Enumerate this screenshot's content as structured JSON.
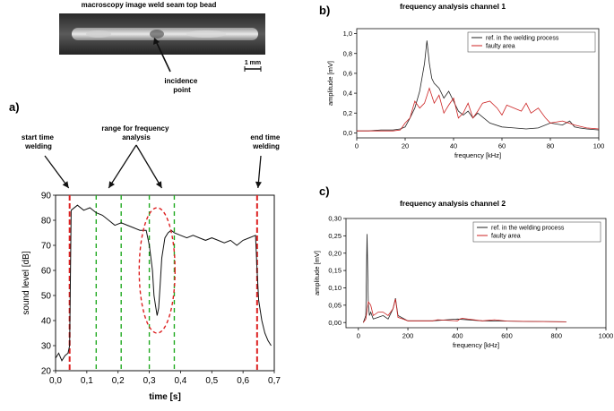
{
  "chart_data": [
    {
      "panel": "a)",
      "type": "line",
      "xlabel": "time [s]",
      "ylabel": "sound level [dB]",
      "xlim": [
        0,
        0.7
      ],
      "ylim": [
        20,
        90
      ],
      "x_ticks": [
        "0,0",
        "0,1",
        "0,2",
        "0,3",
        "0,4",
        "0,5",
        "0,6",
        "0,7"
      ],
      "y_ticks": [
        "20",
        "30",
        "40",
        "50",
        "60",
        "70",
        "80",
        "90"
      ],
      "series": [
        {
          "color": "#111111",
          "x": [
            0.0,
            0.01,
            0.02,
            0.03,
            0.04,
            0.045,
            0.05,
            0.07,
            0.09,
            0.11,
            0.13,
            0.15,
            0.17,
            0.19,
            0.21,
            0.23,
            0.25,
            0.27,
            0.29,
            0.3,
            0.31,
            0.315,
            0.32,
            0.325,
            0.33,
            0.335,
            0.34,
            0.35,
            0.36,
            0.37,
            0.38,
            0.4,
            0.42,
            0.44,
            0.46,
            0.48,
            0.5,
            0.52,
            0.54,
            0.56,
            0.58,
            0.6,
            0.62,
            0.64,
            0.645,
            0.65,
            0.66,
            0.67,
            0.68,
            0.69
          ],
          "y": [
            25,
            27,
            24,
            26,
            27,
            30,
            84,
            86,
            84,
            85,
            83,
            82,
            80,
            78,
            79,
            78,
            77,
            76,
            76,
            70,
            60,
            50,
            46,
            42,
            45,
            55,
            65,
            73,
            75,
            76,
            75,
            74,
            73,
            74,
            73,
            72,
            73,
            72,
            71,
            72,
            70,
            72,
            73,
            74,
            60,
            48,
            40,
            35,
            32,
            30
          ]
        }
      ],
      "markers_red_x": [
        0.045,
        0.645
      ],
      "markers_green_x": [
        0.13,
        0.21,
        0.3,
        0.38
      ],
      "annotations": {
        "start": "start time welding",
        "end": "end time welding",
        "range": "range for frequency analysis"
      }
    },
    {
      "panel": "b)",
      "type": "line",
      "title": "frequency analysis channel 1",
      "xlabel": "frequency [kHz]",
      "ylabel": "amplitude [mV]",
      "xlim": [
        0,
        100
      ],
      "ylim": [
        -0.05,
        1.05
      ],
      "x_ticks": [
        "0",
        "20",
        "40",
        "60",
        "80",
        "100"
      ],
      "y_ticks": [
        "0,0",
        "0,2",
        "0,4",
        "0,6",
        "0,8",
        "1,0"
      ],
      "legend": [
        "ref. in the welding process",
        "faulty area"
      ],
      "legend_position": "top-right",
      "series": [
        {
          "name": "ref. in the welding process",
          "color": "#222222",
          "x": [
            0,
            5,
            10,
            15,
            18,
            20,
            22,
            24,
            26,
            28,
            29,
            30,
            31,
            32,
            34,
            36,
            38,
            40,
            42,
            44,
            46,
            48,
            50,
            55,
            60,
            65,
            70,
            75,
            80,
            85,
            88,
            90,
            92,
            95,
            100
          ],
          "y": [
            0.02,
            0.02,
            0.03,
            0.03,
            0.04,
            0.06,
            0.15,
            0.25,
            0.42,
            0.7,
            0.93,
            0.7,
            0.55,
            0.5,
            0.45,
            0.35,
            0.42,
            0.32,
            0.22,
            0.18,
            0.22,
            0.15,
            0.2,
            0.1,
            0.06,
            0.05,
            0.04,
            0.05,
            0.1,
            0.08,
            0.12,
            0.06,
            0.05,
            0.04,
            0.03
          ]
        },
        {
          "name": "faulty area",
          "color": "#cc2222",
          "x": [
            0,
            5,
            10,
            15,
            18,
            20,
            22,
            24,
            26,
            28,
            30,
            32,
            34,
            36,
            38,
            40,
            42,
            44,
            46,
            48,
            50,
            52,
            55,
            58,
            60,
            62,
            65,
            68,
            70,
            72,
            75,
            78,
            80,
            85,
            90,
            95,
            100
          ],
          "y": [
            0.02,
            0.02,
            0.02,
            0.02,
            0.03,
            0.1,
            0.15,
            0.32,
            0.25,
            0.3,
            0.45,
            0.3,
            0.38,
            0.2,
            0.28,
            0.35,
            0.15,
            0.2,
            0.3,
            0.15,
            0.22,
            0.3,
            0.32,
            0.25,
            0.18,
            0.28,
            0.25,
            0.22,
            0.3,
            0.2,
            0.25,
            0.15,
            0.1,
            0.12,
            0.08,
            0.05,
            0.04
          ]
        }
      ]
    },
    {
      "panel": "c)",
      "type": "line",
      "title": "frequency analysis channel 2",
      "xlabel": "frequency [kHz]",
      "ylabel": "amplitude [mV]",
      "xlim": [
        -50,
        1000
      ],
      "ylim": [
        -0.015,
        0.3
      ],
      "x_ticks": [
        "0",
        "200",
        "400",
        "600",
        "800",
        "1000"
      ],
      "y_ticks": [
        "0,00",
        "0,05",
        "0,10",
        "0,15",
        "0,20",
        "0,25",
        "0,30"
      ],
      "legend": [
        "ref. in the welding process",
        "faulty area"
      ],
      "legend_position": "top-right",
      "series": [
        {
          "name": "ref. in the welding process",
          "color": "#222222",
          "x": [
            20,
            30,
            35,
            40,
            45,
            50,
            60,
            80,
            100,
            120,
            140,
            150,
            160,
            200,
            300,
            400,
            500,
            600,
            700,
            840
          ],
          "y": [
            0.0,
            0.02,
            0.255,
            0.05,
            0.02,
            0.03,
            0.01,
            0.015,
            0.02,
            0.01,
            0.04,
            0.07,
            0.02,
            0.005,
            0.005,
            0.01,
            0.005,
            0.004,
            0.003,
            0.002
          ]
        },
        {
          "name": "faulty area",
          "color": "#cc2222",
          "x": [
            20,
            30,
            40,
            50,
            60,
            80,
            100,
            120,
            140,
            150,
            160,
            180,
            200,
            300,
            320,
            400,
            410,
            420,
            500,
            550,
            600,
            700,
            840
          ],
          "y": [
            0.0,
            0.01,
            0.06,
            0.05,
            0.02,
            0.03,
            0.03,
            0.02,
            0.04,
            0.068,
            0.015,
            0.01,
            0.005,
            0.005,
            0.008,
            0.005,
            0.01,
            0.012,
            0.005,
            0.008,
            0.004,
            0.003,
            0.002
          ]
        }
      ]
    }
  ],
  "photo": {
    "title": "macroscopy  image weld seam top bead",
    "callout": "incidence point",
    "scale_label": "1 mm"
  }
}
